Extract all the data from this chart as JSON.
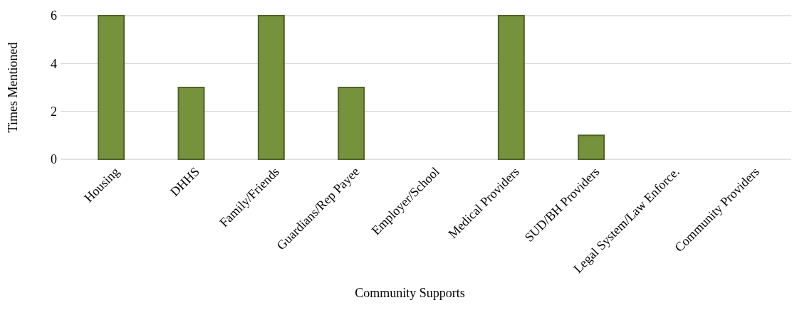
{
  "chart_data": {
    "type": "bar",
    "xlabel": "Community Supports",
    "ylabel": "Times Mentioned",
    "categories": [
      "Housing",
      "DHHS",
      "Family/Friends",
      "Guardians/Rep Payee",
      "Employer/School",
      "Medical Providers",
      "SUD/BH Providers",
      "Legal System/Law Enforce.",
      "Community Providers"
    ],
    "values": [
      6,
      3,
      6,
      3,
      0,
      6,
      1,
      0,
      0
    ],
    "color": "#76923c",
    "ylim": [
      0,
      6
    ],
    "yticks": [
      0,
      2,
      4,
      6
    ],
    "grid": "y"
  }
}
